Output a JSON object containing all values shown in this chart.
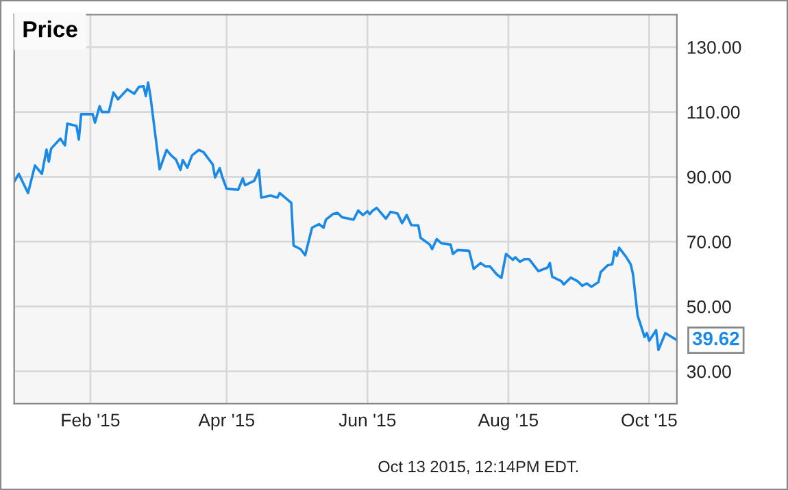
{
  "chart_data": {
    "type": "line",
    "title": "Price",
    "x": [
      "2014-12-30",
      "2015-01-01",
      "2015-01-05",
      "2015-01-08",
      "2015-01-11",
      "2015-01-13",
      "2015-01-14",
      "2015-01-15",
      "2015-01-19",
      "2015-01-21",
      "2015-01-22",
      "2015-01-26",
      "2015-01-27",
      "2015-01-28",
      "2015-02-02",
      "2015-02-03",
      "2015-02-05",
      "2015-02-06",
      "2015-02-09",
      "2015-02-11",
      "2015-02-13",
      "2015-02-17",
      "2015-02-20",
      "2015-02-22",
      "2015-02-24",
      "2015-02-25",
      "2015-02-26",
      "2015-02-27",
      "2015-03-03",
      "2015-03-06",
      "2015-03-08",
      "2015-03-10",
      "2015-03-12",
      "2015-03-13",
      "2015-03-15",
      "2015-03-17",
      "2015-03-20",
      "2015-03-22",
      "2015-03-26",
      "2015-03-27",
      "2015-03-29",
      "2015-03-30",
      "2015-04-01",
      "2015-04-06",
      "2015-04-08",
      "2015-04-09",
      "2015-04-13",
      "2015-04-15",
      "2015-04-16",
      "2015-04-20",
      "2015-04-23",
      "2015-04-24",
      "2015-04-29",
      "2015-04-30",
      "2015-05-03",
      "2015-05-05",
      "2015-05-08",
      "2015-05-11",
      "2015-05-13",
      "2015-05-14",
      "2015-05-17",
      "2015-05-19",
      "2015-05-21",
      "2015-05-26",
      "2015-05-28",
      "2015-05-30",
      "2015-06-01",
      "2015-06-02",
      "2015-06-03",
      "2015-06-05",
      "2015-06-09",
      "2015-06-11",
      "2015-06-14",
      "2015-06-16",
      "2015-06-18",
      "2015-06-20",
      "2015-06-23",
      "2015-06-24",
      "2015-06-28",
      "2015-06-29",
      "2015-07-01",
      "2015-07-03",
      "2015-07-07",
      "2015-07-08",
      "2015-07-10",
      "2015-07-15",
      "2015-07-17",
      "2015-07-20",
      "2015-07-22",
      "2015-07-24",
      "2015-07-27",
      "2015-07-29",
      "2015-07-31",
      "2015-08-03",
      "2015-08-04",
      "2015-08-06",
      "2015-08-08",
      "2015-08-10",
      "2015-08-14",
      "2015-08-18",
      "2015-08-19",
      "2015-08-20",
      "2015-08-24",
      "2015-08-25",
      "2015-08-28",
      "2015-08-31",
      "2015-09-02",
      "2015-09-04",
      "2015-09-06",
      "2015-09-09",
      "2015-09-10",
      "2015-09-13",
      "2015-09-15",
      "2015-09-16",
      "2015-09-17",
      "2015-09-18",
      "2015-09-21",
      "2015-09-23",
      "2015-09-24",
      "2015-09-26",
      "2015-09-29",
      "2015-09-30",
      "2015-10-01",
      "2015-10-04",
      "2015-10-05",
      "2015-10-08",
      "2015-10-13"
    ],
    "series": [
      {
        "color": "#1a8ae6",
        "values": [
          88.5,
          90.9,
          85.0,
          93.5,
          90.9,
          98.4,
          94.7,
          98.7,
          101.8,
          99.7,
          106.4,
          105.7,
          101.5,
          109.3,
          109.3,
          106.7,
          111.8,
          110.0,
          110.0,
          116.0,
          113.9,
          117.0,
          115.6,
          117.7,
          118.0,
          114.9,
          119.1,
          114.9,
          92.3,
          98.3,
          96.6,
          95.4,
          92.1,
          95.2,
          92.8,
          96.6,
          98.3,
          97.6,
          93.8,
          89.8,
          92.7,
          90.2,
          86.3,
          86.0,
          89.5,
          87.4,
          88.8,
          92.1,
          83.6,
          84.2,
          83.6,
          85.0,
          82.0,
          68.8,
          67.7,
          65.8,
          74.3,
          75.4,
          74.3,
          76.8,
          78.5,
          78.9,
          77.5,
          76.8,
          79.6,
          78.2,
          79.4,
          78.5,
          79.4,
          80.4,
          77.1,
          79.2,
          78.7,
          75.7,
          78.2,
          75.1,
          75.0,
          71.2,
          69.1,
          67.7,
          70.8,
          69.5,
          69.1,
          66.2,
          67.4,
          67.2,
          61.6,
          63.4,
          62.4,
          62.4,
          59.9,
          58.8,
          66.2,
          64.4,
          65.2,
          63.8,
          64.6,
          64.6,
          60.9,
          62.0,
          63.4,
          59.2,
          57.8,
          56.8,
          58.9,
          57.8,
          56.4,
          57.1,
          56.1,
          57.5,
          60.6,
          62.7,
          63.0,
          67.0,
          65.6,
          68.1,
          65.3,
          63.0,
          59.9,
          47.2,
          40.6,
          41.8,
          39.4,
          42.7,
          36.6,
          41.8,
          39.62
        ]
      }
    ],
    "xlim": [
      "2014-12-30",
      "2015-10-13"
    ],
    "xticks": [
      {
        "value": "2015-02-01",
        "label": "Feb '15"
      },
      {
        "value": "2015-04-01",
        "label": "Apr '15"
      },
      {
        "value": "2015-06-01",
        "label": "Jun '15"
      },
      {
        "value": "2015-08-01",
        "label": "Aug '15"
      },
      {
        "value": "2015-10-01",
        "label": "Oct '15"
      }
    ],
    "ylim": [
      20,
      140
    ],
    "yticks": [
      {
        "value": 30,
        "label": "30.00"
      },
      {
        "value": 50,
        "label": "50.00"
      },
      {
        "value": 70,
        "label": "70.00"
      },
      {
        "value": 90,
        "label": "90.00"
      },
      {
        "value": 110,
        "label": "110.00"
      },
      {
        "value": 130,
        "label": "130.00"
      }
    ],
    "grid": true,
    "annotations": [
      {
        "text": "39.62",
        "x": "2015-10-13",
        "y": 39.62
      },
      "Oct 13 2015, 12:14PM EDT."
    ]
  }
}
